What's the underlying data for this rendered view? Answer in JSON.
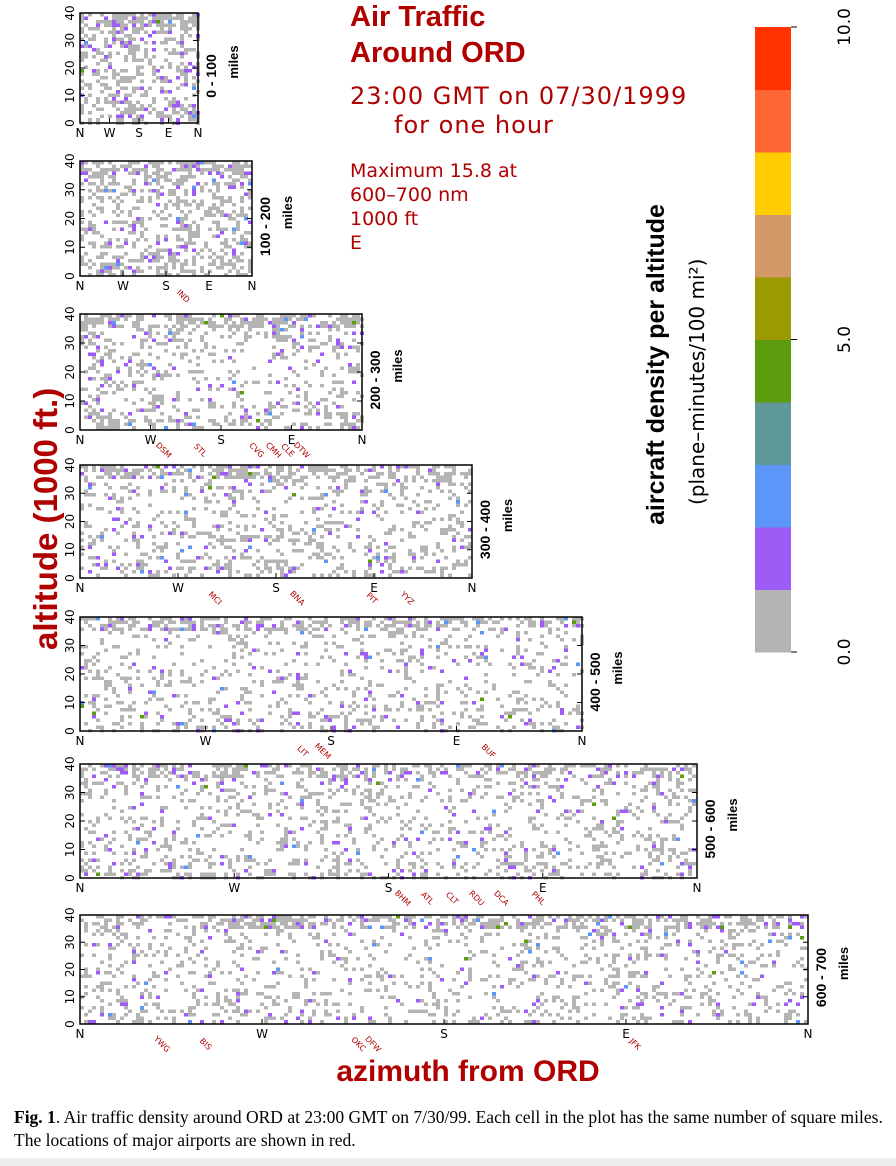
{
  "chart_data": {
    "type": "heatmap",
    "title": [
      "Air Traffic",
      "Around ORD"
    ],
    "subtitle": [
      "23:00 GMT on 07/30/1999",
      "for one hour"
    ],
    "max_note": [
      "Maximum 15.8 at",
      "600–700 nm",
      "1000 ft",
      "E"
    ],
    "ylabel": "altitude (1000 ft.)",
    "xlabel": "azimuth from ORD",
    "colorbar": {
      "label": "aircraft density per altitude",
      "units": "(plane–minutes/100 mi²)",
      "ticks": [
        "0.0",
        "5.0",
        "10.0"
      ],
      "range": [
        0,
        10
      ],
      "colors": [
        "#b4b4b4",
        "#9c5cf5",
        "#5c96f8",
        "#5e9898",
        "#5c9a0e",
        "#9b9a00",
        "#d29865",
        "#ffcc00",
        "#ff6634",
        "#ff3200"
      ]
    },
    "panels": [
      {
        "label": "0 - 100",
        "unit": "miles",
        "yticks": [
          "0",
          "10",
          "20",
          "30",
          "40"
        ],
        "xticks": [
          "N",
          "W",
          "S",
          "E",
          "N"
        ],
        "airports": []
      },
      {
        "label": "100 - 200",
        "unit": "miles",
        "yticks": [
          "0",
          "10",
          "20",
          "30",
          "40"
        ],
        "xticks": [
          "N",
          "W",
          "S",
          "E",
          "N"
        ],
        "airports": [
          "IND"
        ]
      },
      {
        "label": "200 - 300",
        "unit": "miles",
        "yticks": [
          "0",
          "10",
          "20",
          "30",
          "40"
        ],
        "xticks": [
          "N",
          "W",
          "S",
          "E",
          "N"
        ],
        "airports": [
          "DSM",
          "STL",
          "CVG",
          "CMH",
          "CLE",
          "DTW"
        ]
      },
      {
        "label": "300 - 400",
        "unit": "miles",
        "yticks": [
          "0",
          "10",
          "20",
          "30",
          "40"
        ],
        "xticks": [
          "N",
          "W",
          "S",
          "E",
          "N"
        ],
        "airports": [
          "MCI",
          "BNA",
          "PIT",
          "YYZ"
        ]
      },
      {
        "label": "400 - 500",
        "unit": "miles",
        "yticks": [
          "0",
          "10",
          "20",
          "30",
          "40"
        ],
        "xticks": [
          "N",
          "W",
          "S",
          "E",
          "N"
        ],
        "airports": [
          "LIT",
          "MEM",
          "BUF"
        ]
      },
      {
        "label": "500 - 600",
        "unit": "miles",
        "yticks": [
          "0",
          "10",
          "20",
          "30",
          "40"
        ],
        "xticks": [
          "N",
          "W",
          "S",
          "E",
          "N"
        ],
        "airports": [
          "BHM",
          "ATL",
          "CLT",
          "RDU",
          "DCA",
          "PHL"
        ]
      },
      {
        "label": "600 - 700",
        "unit": "miles",
        "yticks": [
          "0",
          "10",
          "20",
          "30",
          "40"
        ],
        "xticks": [
          "N",
          "W",
          "S",
          "E",
          "N"
        ],
        "airports": [
          "YWG",
          "BIS",
          "OKC",
          "DFW",
          "JFK"
        ]
      }
    ],
    "peak": {
      "value": 15.8,
      "range_nm": "600-700",
      "altitude_kft": 1,
      "azimuth": "E"
    }
  },
  "caption": {
    "label": "Fig. 1",
    "text": ". Air traffic density around ORD at 23:00 GMT on 7/30/99. Each cell in the plot has the same number of square miles. The locations of major airports are shown in red."
  }
}
